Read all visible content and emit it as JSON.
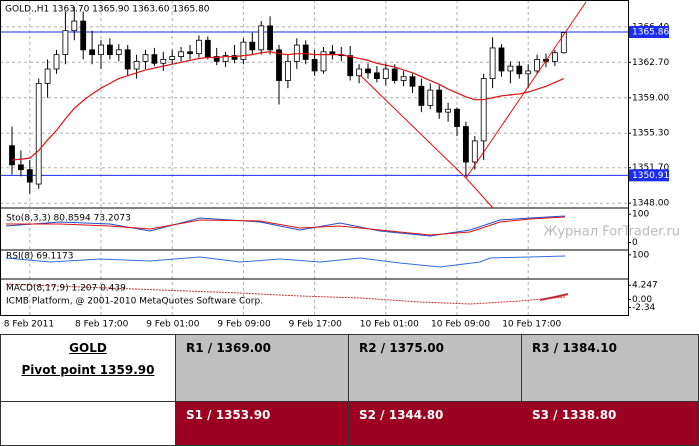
{
  "chart_data": {
    "type": "candlestick",
    "title": "GOLD.,H1  1363.70 1365.90 1363.60 1365.80",
    "watermark": "Журнал ForTrader.ru",
    "copyright": "ICMB Platform, @ 2001-2010 MetaQuotes Software Corp.",
    "ylim": [
      1347.5,
      1369.2
    ],
    "yticks": [
      {
        "value": 1366.4,
        "label": "1366.40"
      },
      {
        "value": 1362.7,
        "label": "1362.70"
      },
      {
        "value": 1359,
        "label": "1359.00"
      },
      {
        "value": 1355.3,
        "label": "1355.30"
      },
      {
        "value": 1351.7,
        "label": "1351.70"
      },
      {
        "value": 1348,
        "label": "1348.00"
      }
    ],
    "grid": true,
    "hlines": [
      {
        "value": 1365.86,
        "label": "1365.86",
        "color": "#1a2cf0"
      },
      {
        "value": 1350.91,
        "label": "1350.91",
        "color": "#1a2cf0"
      }
    ],
    "categories": [
      null,
      null,
      "8 Feb 2011",
      null,
      null,
      null,
      null,
      null,
      null,
      null,
      "8 Feb 17:00",
      null,
      null,
      null,
      null,
      null,
      null,
      null,
      "9 Feb 01:00",
      null,
      null,
      null,
      null,
      null,
      null,
      null,
      "9 Feb 09:00",
      null,
      null,
      null,
      null,
      null,
      null,
      null,
      "9 Feb 17:00",
      null,
      null,
      null,
      null,
      null,
      null,
      null,
      "10 Feb 01:00",
      null,
      null,
      null,
      null,
      null,
      null,
      null,
      "10 Feb 09:00",
      null,
      null,
      null,
      null,
      null,
      null,
      null,
      "10 Feb 17:00",
      null,
      null,
      null,
      null
    ],
    "ohlc": [
      [
        1354,
        1356,
        1351,
        1352
      ],
      [
        1352,
        1353.5,
        1350.8,
        1351.5
      ],
      [
        1351.5,
        1352.5,
        1349,
        1350.2
      ],
      [
        1350,
        1361,
        1349.5,
        1360.5
      ],
      [
        1360.5,
        1363,
        1359,
        1362
      ],
      [
        1362,
        1364,
        1361.5,
        1363.5
      ],
      [
        1363.5,
        1368,
        1362.5,
        1366
      ],
      [
        1366,
        1368.5,
        1365,
        1367
      ],
      [
        1367,
        1368,
        1363,
        1364
      ],
      [
        1364,
        1366,
        1362.5,
        1363.5
      ],
      [
        1363.5,
        1365,
        1362,
        1364.5
      ],
      [
        1364.5,
        1365.2,
        1363,
        1363.5
      ],
      [
        1363.5,
        1364.6,
        1362.8,
        1364
      ],
      [
        1364,
        1364.5,
        1361.3,
        1362
      ],
      [
        1362,
        1363.5,
        1361,
        1362.8
      ],
      [
        1362.8,
        1364,
        1362,
        1363.5
      ],
      [
        1363.5,
        1364.2,
        1362.3,
        1362.6
      ],
      [
        1362.6,
        1363.8,
        1361.8,
        1363
      ],
      [
        1363,
        1364,
        1362.5,
        1363.3
      ],
      [
        1363.3,
        1364.3,
        1362.8,
        1363.8
      ],
      [
        1363.8,
        1364.5,
        1363,
        1363.6
      ],
      [
        1363.6,
        1365.5,
        1363.2,
        1365
      ],
      [
        1365,
        1365.4,
        1363,
        1363.3
      ],
      [
        1363.3,
        1364.2,
        1362.4,
        1362.8
      ],
      [
        1362.8,
        1363.8,
        1362.2,
        1363.4
      ],
      [
        1363.4,
        1364.5,
        1362.6,
        1363
      ],
      [
        1363,
        1365.2,
        1362.5,
        1364.8
      ],
      [
        1364.8,
        1365.8,
        1363.5,
        1364
      ],
      [
        1364,
        1367,
        1363.5,
        1366.5
      ],
      [
        1366.5,
        1367.5,
        1363.5,
        1364
      ],
      [
        1364,
        1364.5,
        1358.3,
        1360.8
      ],
      [
        1360.8,
        1363.5,
        1360,
        1362.8
      ],
      [
        1362.8,
        1365.2,
        1362,
        1364.5
      ],
      [
        1364.5,
        1365,
        1362.5,
        1363
      ],
      [
        1363,
        1364,
        1361.3,
        1361.8
      ],
      [
        1361.8,
        1364.3,
        1361.5,
        1363.8
      ],
      [
        1363.8,
        1364.5,
        1363,
        1363.5
      ],
      [
        1363.5,
        1364.3,
        1362.8,
        1363.4
      ],
      [
        1363.4,
        1364.4,
        1360.8,
        1361.3
      ],
      [
        1361.3,
        1362.5,
        1360.5,
        1362
      ],
      [
        1362,
        1362.6,
        1361,
        1361.6
      ],
      [
        1361.6,
        1362.3,
        1360.6,
        1361
      ],
      [
        1361,
        1362.6,
        1360.3,
        1362
      ],
      [
        1362,
        1362.5,
        1360.5,
        1360.8
      ],
      [
        1360.8,
        1361.8,
        1360.2,
        1361.2
      ],
      [
        1361.2,
        1361.5,
        1359.5,
        1360.2
      ],
      [
        1360.2,
        1361,
        1357.5,
        1358.2
      ],
      [
        1358.2,
        1360.5,
        1357.8,
        1359.8
      ],
      [
        1359.8,
        1360.3,
        1356.8,
        1357.5
      ],
      [
        1357.5,
        1358.5,
        1356.5,
        1357.8
      ],
      [
        1357.8,
        1358,
        1355,
        1356
      ],
      [
        1356,
        1356.5,
        1350.8,
        1352.3
      ],
      [
        1352.3,
        1355,
        1351.5,
        1354.5
      ],
      [
        1354.5,
        1361.5,
        1352.5,
        1361
      ],
      [
        1361,
        1365.3,
        1360,
        1364.2
      ],
      [
        1364.2,
        1364.6,
        1361.2,
        1361.8
      ],
      [
        1361.8,
        1362.8,
        1360.5,
        1362.3
      ],
      [
        1362.3,
        1362.8,
        1361,
        1361.5
      ],
      [
        1361.5,
        1362.5,
        1360,
        1361.8
      ],
      [
        1361.8,
        1363.5,
        1361.5,
        1363
      ],
      [
        1363,
        1363.6,
        1362.2,
        1362.8
      ],
      [
        1362.8,
        1364,
        1362.3,
        1363.7
      ],
      [
        1363.7,
        1365.9,
        1363.6,
        1365.8
      ]
    ],
    "ma": {
      "color": "#e01010",
      "values": [
        1352.5,
        1352.6,
        1352.7,
        1353.5,
        1354.6,
        1355.6,
        1356.8,
        1357.9,
        1358.7,
        1359.4,
        1360.0,
        1360.5,
        1361.0,
        1361.3,
        1361.6,
        1361.9,
        1362.1,
        1362.3,
        1362.5,
        1362.7,
        1362.9,
        1363.1,
        1363.2,
        1363.2,
        1363.3,
        1363.3,
        1363.4,
        1363.5,
        1363.7,
        1363.8,
        1363.6,
        1363.5,
        1363.6,
        1363.6,
        1363.5,
        1363.5,
        1363.5,
        1363.5,
        1363.3,
        1363.1,
        1362.9,
        1362.6,
        1362.4,
        1362.2,
        1361.9,
        1361.6,
        1361.2,
        1360.8,
        1360.4,
        1359.9,
        1359.5,
        1359.1,
        1358.8,
        1358.8,
        1359.0,
        1359.2,
        1359.3,
        1359.4,
        1359.6,
        1359.9,
        1360.2,
        1360.6,
        1361.0
      ]
    },
    "panels": [
      {
        "title": "Sto(8,3,3) 80.8594 73.2073",
        "ylim": [
          -26,
          122
        ],
        "yticks": [
          100,
          0
        ]
      },
      {
        "title": "RSI(8) 69.1173",
        "ylim": [
          -50,
          130
        ],
        "yticks": [
          100
        ]
      },
      {
        "title": "MACD(8,17,9) 1.207 0.439",
        "ylim": [
          -4.85,
          6.07
        ],
        "yticks": [
          4.247,
          {
            "value": 0,
            "label": "0.00"
          },
          -2.34
        ]
      }
    ]
  },
  "table": {
    "symbol": "GOLD",
    "pivot": "Pivot point 1359.90",
    "resistance": [
      "R1 / 1369.00",
      "R2 / 1375.00",
      "R3 / 1384.10"
    ],
    "support": [
      "S1 / 1353.90",
      "S2 / 1344.80",
      "S3 / 1338.80"
    ]
  }
}
